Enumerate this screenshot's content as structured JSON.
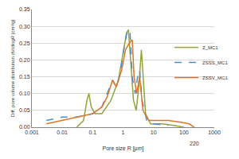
{
  "chart_data": {
    "type": "line",
    "x_label": "Pore size R [µm]",
    "y_label": "Diff. pore volume distribution dV/dlogR [cm³/g]",
    "log": "x",
    "grid": true,
    "legend": "right",
    "xlim": [
      0.001,
      1000
    ],
    "xticks": [
      0.001,
      0.01,
      0.1,
      1,
      10,
      100,
      1000
    ],
    "ylim": [
      0,
      0.35
    ],
    "yticks": [
      {
        "value": 0,
        "label": "0.00"
      },
      0.05,
      {
        "value": 0.1,
        "label": "0.10"
      },
      0.15,
      {
        "value": 0.2,
        "label": "0.20"
      },
      0.25,
      {
        "value": 0.3,
        "label": "0.30"
      },
      0.35
    ],
    "annotations": [
      {
        "text": "220",
        "x": 220
      }
    ],
    "series": [
      {
        "name": "Z_MC1",
        "color": "#93a33a",
        "line_style": "solid",
        "x": [
          0.03,
          0.05,
          0.065,
          0.075,
          0.09,
          0.12,
          0.2,
          0.4,
          0.7,
          1.0,
          1.3,
          1.5,
          1.8,
          2.2,
          2.7,
          3.3,
          4.0,
          4.6,
          5.5,
          8,
          20,
          50,
          100
        ],
        "values": [
          0.0,
          0.02,
          0.08,
          0.1,
          0.06,
          0.04,
          0.04,
          0.08,
          0.14,
          0.22,
          0.28,
          0.29,
          0.2,
          0.08,
          0.05,
          0.12,
          0.23,
          0.15,
          0.04,
          0.01,
          0.01,
          0.005,
          0.0
        ]
      },
      {
        "name": "ZSSS_MC1",
        "color": "#4a8fd4",
        "line_style": "dash",
        "x": [
          0.003,
          0.01,
          0.03,
          0.1,
          0.2,
          0.3,
          0.45,
          0.6,
          0.8,
          1.1,
          1.4,
          1.7,
          2.0,
          2.5,
          3.0,
          3.5,
          4.2,
          6,
          10,
          30
        ],
        "values": [
          0.02,
          0.03,
          0.03,
          0.04,
          0.06,
          0.1,
          0.14,
          0.12,
          0.16,
          0.24,
          0.29,
          0.28,
          0.15,
          0.1,
          0.15,
          0.17,
          0.08,
          0.02,
          0.01,
          0.005
        ]
      },
      {
        "name": "ZSSV_MC1",
        "color": "#d9762b",
        "line_style": "solid",
        "x": [
          0.003,
          0.01,
          0.03,
          0.1,
          0.2,
          0.3,
          0.45,
          0.6,
          0.9,
          1.2,
          1.6,
          2.0,
          2.3,
          2.8,
          3.5,
          4.5,
          7,
          15,
          30,
          80,
          150,
          220
        ],
        "values": [
          0.01,
          0.02,
          0.03,
          0.04,
          0.06,
          0.09,
          0.14,
          0.12,
          0.17,
          0.23,
          0.25,
          0.26,
          0.15,
          0.1,
          0.15,
          0.05,
          0.02,
          0.02,
          0.02,
          0.015,
          0.01,
          0.0
        ]
      }
    ]
  }
}
